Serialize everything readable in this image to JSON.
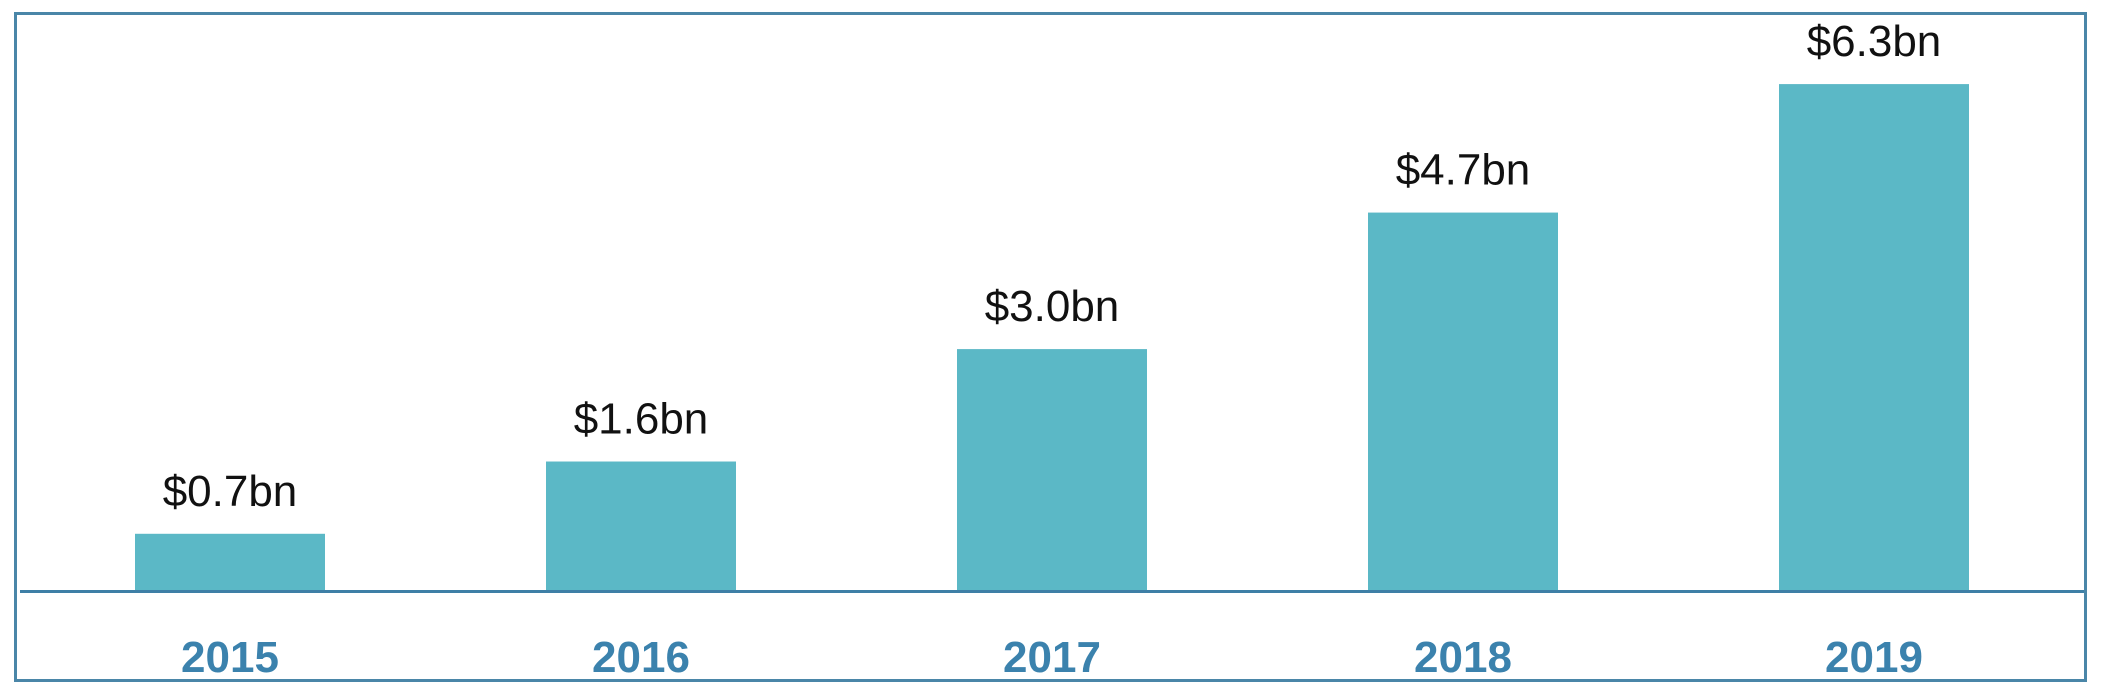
{
  "chart_data": {
    "type": "bar",
    "categories": [
      "2015",
      "2016",
      "2017",
      "2018",
      "2019"
    ],
    "values": [
      0.7,
      1.6,
      3.0,
      4.7,
      6.3
    ],
    "data_labels": [
      "$0.7bn",
      "$1.6bn",
      "$3.0bn",
      "$4.7bn",
      "$6.3bn"
    ],
    "title": "",
    "xlabel": "",
    "ylabel": "",
    "ylim": [
      0,
      6.6
    ],
    "grid": false,
    "legend": "none",
    "colors": {
      "bar": "#5bb8c6",
      "axis": "#3e7fa6",
      "tick_label": "#3b82ad",
      "data_label": "#111111",
      "frame": "#4a86a8"
    }
  }
}
